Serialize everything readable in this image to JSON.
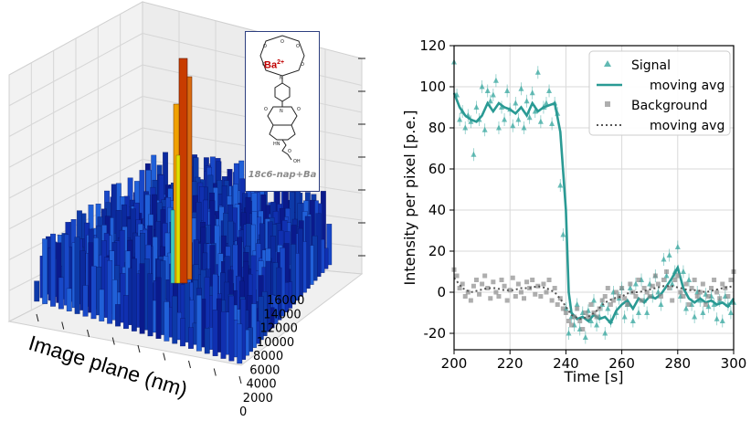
{
  "left_panel": {
    "xlabel": "Image plane (nm)",
    "depth_ticks": [
      "16000",
      "14000",
      "12000",
      "10000",
      "8000",
      "6000",
      "4000",
      "2000",
      "0"
    ],
    "inset": {
      "ion_label": "Ba",
      "ion_charge": "2+",
      "molecule_label": "18c6-nap+Ba",
      "groups": [
        "O",
        "O",
        "O",
        "O",
        "O",
        "N",
        "N",
        "O",
        "O",
        "HN",
        "O",
        "OH"
      ]
    },
    "colors": {
      "background_bars": "#1133aa",
      "peak": "#c83c00",
      "peak_mid": "#e0e000"
    }
  },
  "chart_data": {
    "type": "scatter",
    "xlabel": "Time [s]",
    "ylabel": "Intensity per pixel [p.e.]",
    "xlim": [
      200,
      300
    ],
    "ylim": [
      -28,
      120
    ],
    "xticks": [
      200,
      220,
      240,
      260,
      280,
      300
    ],
    "yticks": [
      -20,
      0,
      20,
      40,
      60,
      80,
      100,
      120
    ],
    "grid": true,
    "legend_position": "top-right",
    "legend": [
      "Signal",
      "moving avg",
      "Background",
      "moving avg"
    ],
    "series": [
      {
        "name": "Signal",
        "kind": "points",
        "marker": "triangle",
        "color": "#3aa8a0",
        "x": [
          200,
          201,
          202,
          203,
          204,
          205,
          206,
          207,
          208,
          209,
          210,
          211,
          212,
          213,
          214,
          215,
          216,
          217,
          218,
          219,
          220,
          221,
          222,
          223,
          224,
          225,
          226,
          227,
          228,
          229,
          230,
          231,
          232,
          233,
          234,
          235,
          236,
          237,
          238,
          239,
          240,
          241,
          242,
          243,
          244,
          245,
          246,
          247,
          248,
          249,
          250,
          251,
          252,
          253,
          254,
          255,
          256,
          257,
          258,
          259,
          260,
          261,
          262,
          263,
          264,
          265,
          266,
          267,
          268,
          269,
          270,
          271,
          272,
          273,
          274,
          275,
          276,
          277,
          278,
          279,
          280,
          281,
          282,
          283,
          284,
          285,
          286,
          287,
          288,
          289,
          290,
          291,
          292,
          293,
          294,
          295,
          296,
          297,
          298,
          299,
          300
        ],
        "y": [
          112,
          96,
          84,
          88,
          80,
          86,
          83,
          67,
          90,
          84,
          100,
          79,
          98,
          93,
          96,
          103,
          80,
          90,
          84,
          98,
          89,
          81,
          92,
          84,
          99,
          80,
          93,
          85,
          97,
          88,
          107,
          83,
          90,
          92,
          98,
          82,
          92,
          87,
          52,
          28,
          -8,
          -20,
          -12,
          -16,
          -6,
          -18,
          -10,
          -22,
          -9,
          -14,
          -4,
          -16,
          -12,
          -6,
          -20,
          -8,
          -14,
          0,
          -10,
          -3,
          2,
          -12,
          -6,
          2,
          -14,
          4,
          -10,
          6,
          -4,
          -10,
          4,
          -2,
          8,
          0,
          -6,
          16,
          8,
          18,
          4,
          10,
          22,
          -2,
          10,
          -8,
          6,
          -6,
          -12,
          0,
          -4,
          -10,
          -1,
          -7,
          -2,
          -6,
          -13,
          -4,
          -14,
          -2,
          -6,
          -10,
          -5
        ]
      },
      {
        "name": "moving avg",
        "kind": "line",
        "color": "#2a9a94",
        "x": [
          200,
          202,
          204,
          206,
          208,
          210,
          212,
          214,
          216,
          218,
          220,
          222,
          224,
          226,
          228,
          230,
          232,
          234,
          236,
          238,
          240,
          241,
          242,
          244,
          246,
          248,
          250,
          252,
          254,
          256,
          258,
          260,
          262,
          264,
          266,
          268,
          270,
          272,
          274,
          276,
          278,
          280,
          282,
          284,
          286,
          288,
          290,
          292,
          294,
          296,
          298,
          300
        ],
        "y": [
          97,
          90,
          86,
          84,
          83,
          86,
          92,
          88,
          92,
          90,
          89,
          87,
          90,
          86,
          92,
          88,
          90,
          91,
          92,
          78,
          40,
          0,
          -10,
          -13,
          -12,
          -14,
          -11,
          -13,
          -12,
          -15,
          -9,
          -6,
          -4,
          -8,
          -3,
          -5,
          -2,
          -3,
          -1,
          3,
          7,
          12,
          2,
          -3,
          -5,
          -3,
          -5,
          -4,
          -6,
          -5,
          -7,
          -3
        ]
      },
      {
        "name": "Background",
        "kind": "points",
        "marker": "square",
        "color": "#8c8c8c",
        "x": [
          200,
          201,
          202,
          203,
          204,
          205,
          206,
          207,
          208,
          209,
          210,
          211,
          212,
          213,
          214,
          215,
          216,
          217,
          218,
          219,
          220,
          221,
          222,
          223,
          224,
          225,
          226,
          227,
          228,
          229,
          230,
          231,
          232,
          233,
          234,
          235,
          236,
          237,
          238,
          239,
          240,
          241,
          242,
          243,
          244,
          245,
          246,
          247,
          248,
          249,
          250,
          251,
          252,
          253,
          254,
          255,
          256,
          257,
          258,
          259,
          260,
          261,
          262,
          263,
          264,
          265,
          266,
          267,
          268,
          269,
          270,
          271,
          272,
          273,
          274,
          275,
          276,
          277,
          278,
          279,
          280,
          281,
          282,
          283,
          284,
          285,
          286,
          287,
          288,
          289,
          290,
          291,
          292,
          293,
          294,
          295,
          296,
          297,
          298,
          299,
          300
        ],
        "y": [
          11,
          8,
          2,
          4,
          -2,
          0,
          -4,
          3,
          6,
          -1,
          4,
          8,
          2,
          -3,
          5,
          0,
          -2,
          6,
          3,
          -4,
          1,
          7,
          -2,
          4,
          0,
          -3,
          5,
          2,
          6,
          -1,
          3,
          -2,
          4,
          0,
          6,
          -4,
          2,
          -6,
          -3,
          -8,
          -10,
          -14,
          -16,
          -12,
          -8,
          -14,
          -18,
          -10,
          -12,
          -6,
          -10,
          -12,
          -8,
          -4,
          -2,
          2,
          -6,
          -4,
          0,
          -2,
          2,
          -3,
          -6,
          4,
          0,
          -2,
          6,
          -4,
          2,
          0,
          -2,
          3,
          8,
          4,
          -2,
          6,
          10,
          2,
          -4,
          6,
          8,
          0,
          -2,
          4,
          -6,
          2,
          6,
          -2,
          0,
          4,
          -6,
          -2,
          2,
          6,
          0,
          -3,
          4,
          2,
          -2,
          6,
          10
        ]
      },
      {
        "name": "moving avg",
        "kind": "line",
        "dashed": true,
        "color": "#555555",
        "x": [
          200,
          203,
          206,
          209,
          212,
          215,
          218,
          221,
          224,
          227,
          230,
          233,
          236,
          239,
          242,
          245,
          248,
          251,
          254,
          257,
          260,
          263,
          266,
          269,
          272,
          275,
          278,
          281,
          284,
          287,
          290,
          293,
          296,
          300
        ],
        "y": [
          7,
          2,
          0,
          1,
          2,
          2,
          1,
          1,
          2,
          2,
          3,
          2,
          0,
          -5,
          -11,
          -13,
          -12,
          -9,
          -5,
          -3,
          -2,
          0,
          0,
          1,
          2,
          3,
          3,
          2,
          1,
          1,
          0,
          1,
          2,
          3
        ]
      }
    ]
  }
}
